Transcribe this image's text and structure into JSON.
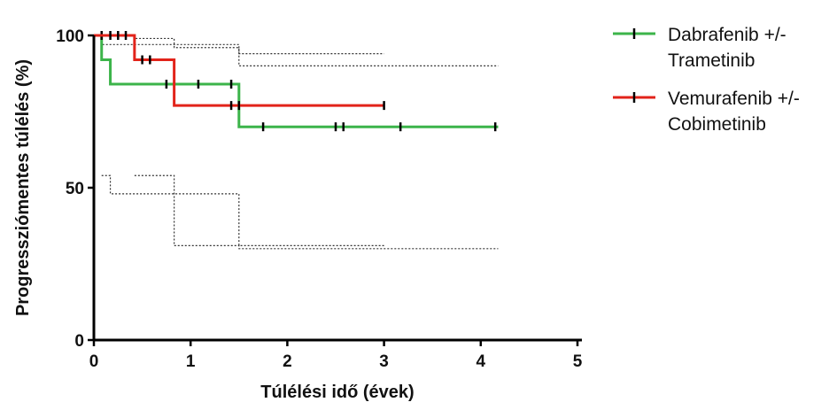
{
  "chart_data": {
    "type": "line",
    "xlabel": "Túlélési idő (évek)",
    "ylabel": "Progressziómentes túlélés (%)",
    "xlim": [
      0,
      5
    ],
    "ylim": [
      0,
      100
    ],
    "x_ticks": [
      0,
      1,
      2,
      3,
      4,
      5
    ],
    "y_ticks": [
      0,
      50,
      100
    ],
    "x_tick_labels": [
      "0",
      "1",
      "2",
      "3",
      "4",
      "5"
    ],
    "y_tick_labels": [
      "0",
      "50",
      "100"
    ],
    "legend_placement": "top-right",
    "series": [
      {
        "name_lines": [
          "Dabrafenib +/-",
          "Trametinib"
        ],
        "color": "#3cb44a",
        "steps": [
          [
            0,
            100
          ],
          [
            0.08,
            92
          ],
          [
            0.17,
            84
          ],
          [
            1.5,
            70
          ],
          [
            4.18,
            70
          ]
        ],
        "censors": [
          [
            0.08,
            100
          ],
          [
            0.75,
            84
          ],
          [
            1.08,
            84
          ],
          [
            1.42,
            84
          ],
          [
            1.75,
            70
          ],
          [
            2.5,
            70
          ],
          [
            2.58,
            70
          ],
          [
            3.17,
            70
          ],
          [
            4.15,
            70
          ]
        ]
      },
      {
        "name_lines": [
          "Vemurafenib +/-",
          "Cobimetinib"
        ],
        "color": "#e2231a",
        "steps": [
          [
            0,
            100
          ],
          [
            0.42,
            92
          ],
          [
            0.83,
            77
          ],
          [
            3.0,
            77
          ]
        ],
        "censors": [
          [
            0.17,
            100
          ],
          [
            0.25,
            100
          ],
          [
            0.33,
            100
          ],
          [
            0.5,
            92
          ],
          [
            0.58,
            92
          ],
          [
            1.42,
            77
          ],
          [
            1.5,
            77
          ],
          [
            3.0,
            77
          ]
        ]
      }
    ],
    "confidence_bands": [
      {
        "color": "#333333",
        "upper": [
          [
            0,
            100
          ],
          [
            0.08,
            97
          ],
          [
            0.17,
            97
          ],
          [
            1.5,
            94
          ],
          [
            3.0,
            94
          ]
        ],
        "lower": [
          [
            0.08,
            54
          ],
          [
            0.17,
            48
          ],
          [
            1.5,
            48
          ],
          [
            1.5,
            31
          ],
          [
            3.0,
            31
          ]
        ]
      },
      {
        "color": "#333333",
        "upper": [
          [
            0.17,
            100
          ],
          [
            0.42,
            99
          ],
          [
            0.83,
            99
          ],
          [
            0.83,
            96
          ],
          [
            1.5,
            96
          ],
          [
            1.5,
            90
          ],
          [
            4.18,
            90
          ]
        ],
        "lower": [
          [
            0.42,
            54
          ],
          [
            0.83,
            54
          ],
          [
            0.83,
            31
          ],
          [
            1.5,
            31
          ],
          [
            1.5,
            30
          ],
          [
            4.18,
            30
          ]
        ]
      }
    ]
  }
}
